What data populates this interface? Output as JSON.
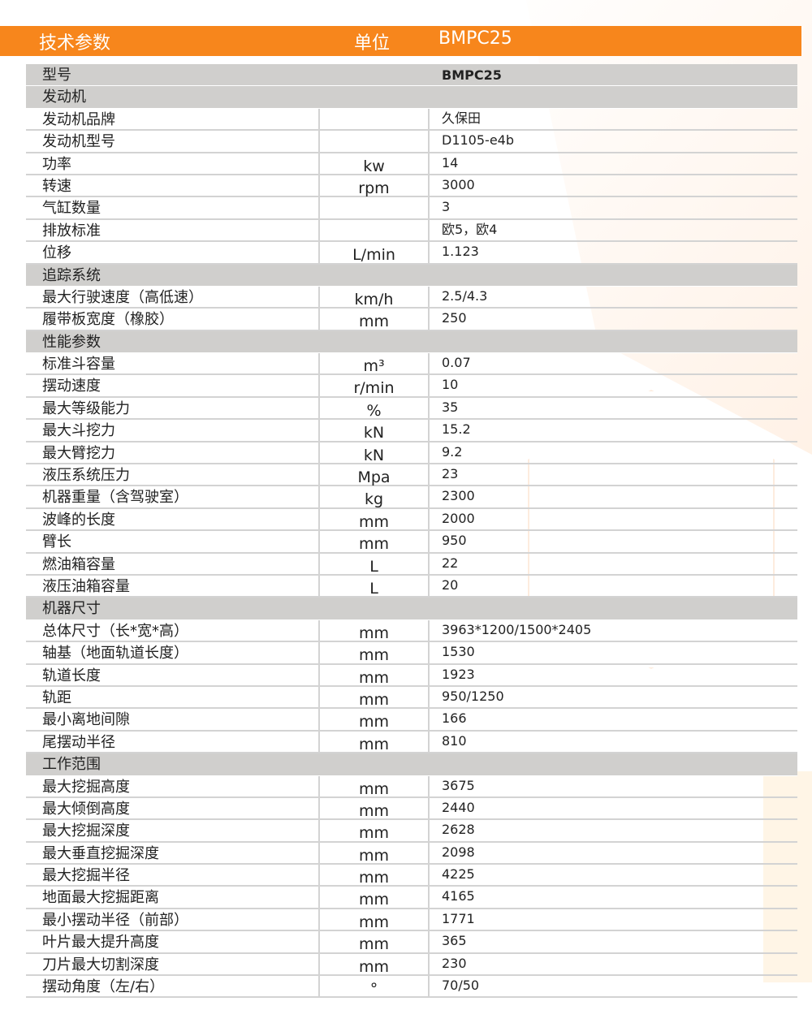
{
  "header": {
    "param": "技术参数",
    "unit": "单位",
    "model": "BMPC25"
  },
  "colors": {
    "accent": "#f7861c",
    "section_bg": "#d0cfcd"
  },
  "rows": [
    {
      "type": "model",
      "name": "型号",
      "value": "BMPC25"
    },
    {
      "type": "section",
      "name": "发动机"
    },
    {
      "type": "data",
      "name": "发动机品牌",
      "unit": "",
      "value": "久保田"
    },
    {
      "type": "data",
      "name": "发动机型号",
      "unit": "",
      "value": "D1105-e4b"
    },
    {
      "type": "data",
      "name": "功率",
      "unit": "kw",
      "value": "14"
    },
    {
      "type": "data",
      "name": "转速",
      "unit": "rpm",
      "value": "3000"
    },
    {
      "type": "data",
      "name": "气缸数量",
      "unit": "",
      "value": "3"
    },
    {
      "type": "data",
      "name": "排放标准",
      "unit": "",
      "value": "欧5，欧4"
    },
    {
      "type": "data",
      "name": "位移",
      "unit": "L/min",
      "value": "1.123"
    },
    {
      "type": "section",
      "name": "追踪系统"
    },
    {
      "type": "data",
      "name": "最大行驶速度（高低速）",
      "unit": "km/h",
      "value": "2.5/4.3"
    },
    {
      "type": "data",
      "name": "履带板宽度（橡胶）",
      "unit": "mm",
      "value": "250"
    },
    {
      "type": "section",
      "name": "性能参数"
    },
    {
      "type": "data",
      "name": "标准斗容量",
      "unit": "m³",
      "value": "0.07"
    },
    {
      "type": "data",
      "name": "摆动速度",
      "unit": "r/min",
      "value": "10"
    },
    {
      "type": "data",
      "name": "最大等级能力",
      "unit": "%",
      "value": "35"
    },
    {
      "type": "data",
      "name": "最大斗挖力",
      "unit": "kN",
      "value": "15.2"
    },
    {
      "type": "data",
      "name": "最大臂挖力",
      "unit": "kN",
      "value": "9.2"
    },
    {
      "type": "data",
      "name": "液压系统压力",
      "unit": "Mpa",
      "value": "23"
    },
    {
      "type": "data",
      "name": "机器重量（含驾驶室）",
      "unit": "kg",
      "value": "2300"
    },
    {
      "type": "data",
      "name": "波峰的长度",
      "unit": "mm",
      "value": "2000"
    },
    {
      "type": "data",
      "name": "臂长",
      "unit": "mm",
      "value": "950"
    },
    {
      "type": "data",
      "name": "燃油箱容量",
      "unit": "L",
      "value": "22"
    },
    {
      "type": "data",
      "name": "液压油箱容量",
      "unit": "L",
      "value": "20"
    },
    {
      "type": "section",
      "name": "机器尺寸"
    },
    {
      "type": "data",
      "name": "总体尺寸（长*宽*高）",
      "unit": "mm",
      "value": "3963*1200/1500*2405"
    },
    {
      "type": "data",
      "name": "轴基（地面轨道长度）",
      "unit": "mm",
      "value": "1530"
    },
    {
      "type": "data",
      "name": "轨道长度",
      "unit": "mm",
      "value": "1923"
    },
    {
      "type": "data",
      "name": "轨距",
      "unit": "mm",
      "value": "950/1250"
    },
    {
      "type": "data",
      "name": "最小离地间隙",
      "unit": "mm",
      "value": "166"
    },
    {
      "type": "data",
      "name": "尾摆动半径",
      "unit": "mm",
      "value": "810"
    },
    {
      "type": "section",
      "name": "工作范围"
    },
    {
      "type": "data",
      "name": "最大挖掘高度",
      "unit": "mm",
      "value": "3675"
    },
    {
      "type": "data",
      "name": "最大倾倒高度",
      "unit": "mm",
      "value": "2440"
    },
    {
      "type": "data",
      "name": "最大挖掘深度",
      "unit": "mm",
      "value": "2628"
    },
    {
      "type": "data",
      "name": "最大垂直挖掘深度",
      "unit": "mm",
      "value": "2098"
    },
    {
      "type": "data",
      "name": "最大挖掘半径",
      "unit": "mm",
      "value": "4225"
    },
    {
      "type": "data",
      "name": "地面最大挖掘距离",
      "unit": "mm",
      "value": "4165"
    },
    {
      "type": "data",
      "name": "最小摆动半径（前部）",
      "unit": "mm",
      "value": "1771"
    },
    {
      "type": "data",
      "name": "叶片最大提升高度",
      "unit": "mm",
      "value": "365"
    },
    {
      "type": "data",
      "name": "刀片最大切割深度",
      "unit": "mm",
      "value": "230"
    },
    {
      "type": "data",
      "name": "摆动角度（左/右）",
      "unit": "°",
      "value": "70/50"
    }
  ]
}
